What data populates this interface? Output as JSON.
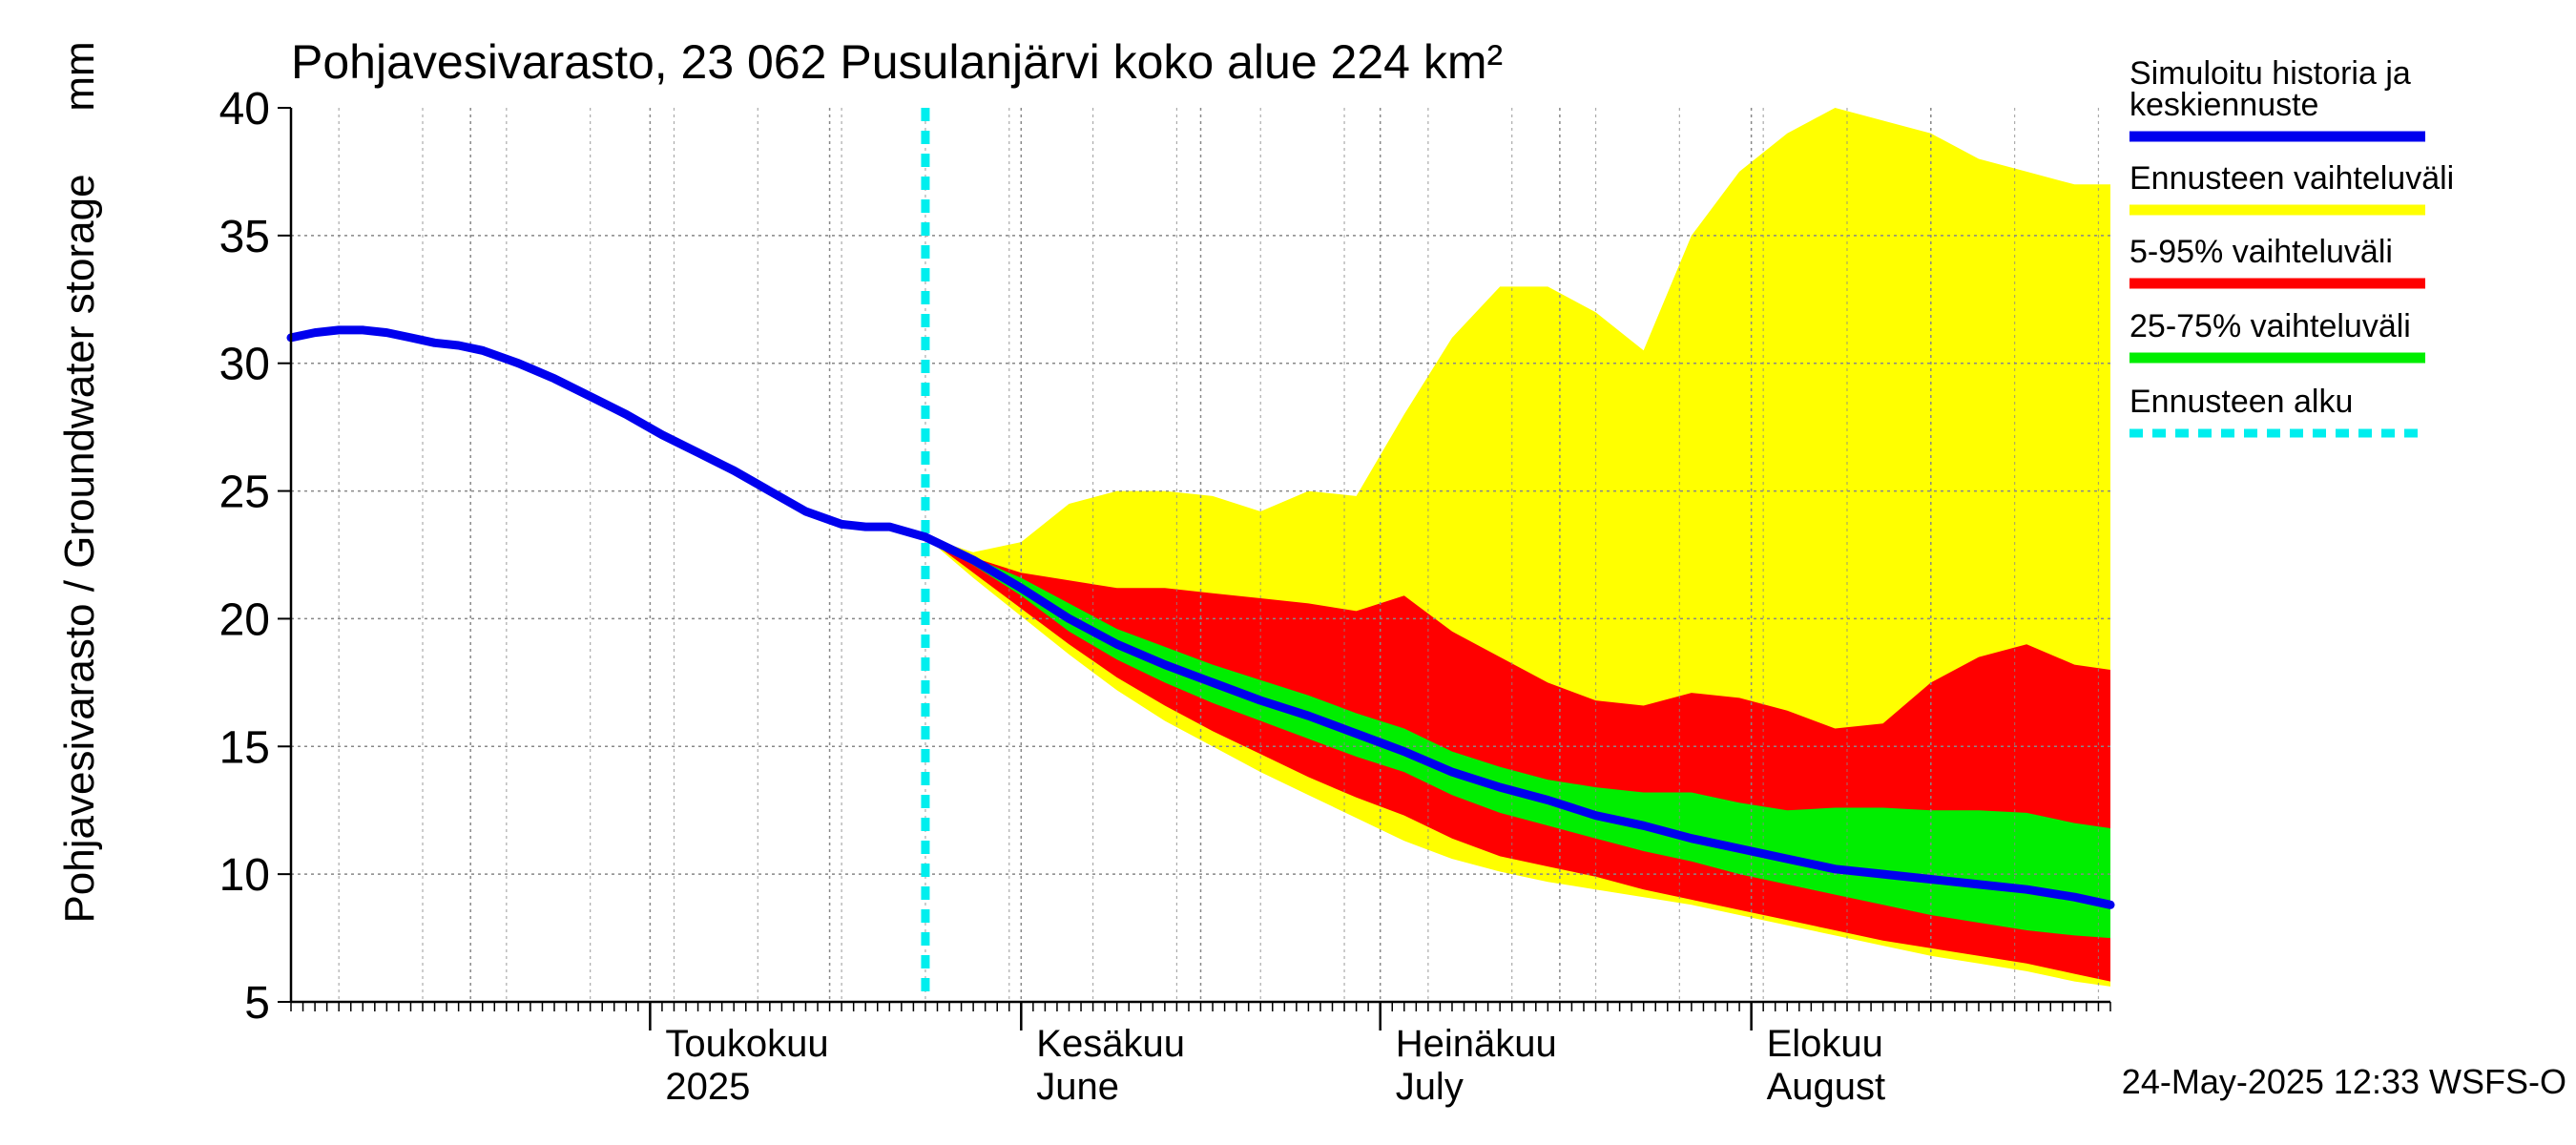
{
  "chart_data": {
    "type": "area",
    "title": "Pohjavesivarasto, 23 062 Pusulanjärvi koko alue 224 km²",
    "ylabel": "Pohjavesivarasto / Groundwater storage",
    "yunit": "mm",
    "ylim": [
      5,
      40
    ],
    "yticks": [
      5,
      10,
      15,
      20,
      25,
      30,
      35,
      40
    ],
    "xlim": [
      "2025-04-01",
      "2025-08-31"
    ],
    "month_labels": [
      {
        "date": "2025-05-01",
        "line1": "Toukokuu",
        "line2": "2025"
      },
      {
        "date": "2025-06-01",
        "line1": "Kesäkuu",
        "line2": "June"
      },
      {
        "date": "2025-07-01",
        "line1": "Heinäkuu",
        "line2": "July"
      },
      {
        "date": "2025-08-01",
        "line1": "Elokuu",
        "line2": "August"
      }
    ],
    "forecast_start": "2025-05-24",
    "timestamp": "24-May-2025 12:33 WSFS-O",
    "colors": {
      "history": "#0000ee",
      "full_range": "#ffff00",
      "p5_95": "#ff0000",
      "p25_75": "#00ee00",
      "forecast_start": "#00eeee",
      "grid": "#888888"
    },
    "legend": [
      {
        "label": "Simuloitu historia ja",
        "label2": "keskiennuste",
        "key": "history"
      },
      {
        "label": "Ennusteen vaihteluväli",
        "key": "full_range"
      },
      {
        "label": "5-95% vaihteluväli",
        "key": "p5_95"
      },
      {
        "label": "25-75% vaihteluväli",
        "key": "p25_75"
      },
      {
        "label": "Ennusteen alku",
        "key": "forecast_start"
      }
    ],
    "history": {
      "x": [
        "2025-04-01",
        "2025-04-03",
        "2025-04-05",
        "2025-04-07",
        "2025-04-09",
        "2025-04-11",
        "2025-04-13",
        "2025-04-15",
        "2025-04-17",
        "2025-04-20",
        "2025-04-23",
        "2025-04-26",
        "2025-04-29",
        "2025-05-02",
        "2025-05-05",
        "2025-05-08",
        "2025-05-11",
        "2025-05-14",
        "2025-05-17",
        "2025-05-19",
        "2025-05-21",
        "2025-05-24"
      ],
      "y": [
        31.0,
        31.2,
        31.3,
        31.3,
        31.2,
        31.0,
        30.8,
        30.7,
        30.5,
        30.0,
        29.4,
        28.7,
        28.0,
        27.2,
        26.5,
        25.8,
        25.0,
        24.2,
        23.7,
        23.6,
        23.6,
        23.2
      ]
    },
    "forecast": {
      "x": [
        "2025-05-24",
        "2025-05-28",
        "2025-06-01",
        "2025-06-05",
        "2025-06-09",
        "2025-06-13",
        "2025-06-17",
        "2025-06-21",
        "2025-06-25",
        "2025-06-29",
        "2025-07-03",
        "2025-07-07",
        "2025-07-11",
        "2025-07-15",
        "2025-07-19",
        "2025-07-23",
        "2025-07-27",
        "2025-07-31",
        "2025-08-04",
        "2025-08-08",
        "2025-08-12",
        "2025-08-16",
        "2025-08-20",
        "2025-08-24",
        "2025-08-28",
        "2025-08-31"
      ],
      "median": [
        23.2,
        22.3,
        21.2,
        20.0,
        19.0,
        18.2,
        17.5,
        16.8,
        16.2,
        15.5,
        14.8,
        14.0,
        13.4,
        12.9,
        12.3,
        11.9,
        11.4,
        11.0,
        10.6,
        10.2,
        10.0,
        9.8,
        9.6,
        9.4,
        9.1,
        8.8
      ],
      "max": [
        23.2,
        22.6,
        23.0,
        24.5,
        25.0,
        25.0,
        24.8,
        24.2,
        25.0,
        24.8,
        28.0,
        31.0,
        33.0,
        33.0,
        32.0,
        30.5,
        35.0,
        37.5,
        39.0,
        40.0,
        39.5,
        39.0,
        38.0,
        37.5,
        37.0,
        37.0
      ],
      "p95": [
        23.2,
        22.4,
        21.8,
        21.5,
        21.2,
        21.2,
        21.0,
        20.8,
        20.6,
        20.3,
        20.9,
        19.5,
        18.5,
        17.5,
        16.8,
        16.6,
        17.1,
        16.9,
        16.4,
        15.7,
        15.9,
        17.5,
        18.5,
        19.0,
        18.2,
        18.0
      ],
      "p75": [
        23.2,
        22.4,
        21.6,
        20.6,
        19.6,
        18.9,
        18.2,
        17.6,
        17.0,
        16.3,
        15.7,
        14.8,
        14.2,
        13.7,
        13.4,
        13.2,
        13.2,
        12.8,
        12.5,
        12.6,
        12.6,
        12.5,
        12.5,
        12.4,
        12.0,
        11.8
      ],
      "p25": [
        23.2,
        22.1,
        20.9,
        19.5,
        18.4,
        17.5,
        16.7,
        16.0,
        15.3,
        14.6,
        14.0,
        13.1,
        12.4,
        11.9,
        11.4,
        10.9,
        10.5,
        10.0,
        9.6,
        9.2,
        8.8,
        8.4,
        8.1,
        7.8,
        7.6,
        7.5
      ],
      "p5": [
        23.2,
        21.8,
        20.4,
        19.0,
        17.7,
        16.6,
        15.6,
        14.7,
        13.8,
        13.0,
        12.3,
        11.4,
        10.7,
        10.3,
        9.9,
        9.4,
        9.0,
        8.6,
        8.2,
        7.8,
        7.4,
        7.1,
        6.8,
        6.5,
        6.1,
        5.8
      ],
      "min": [
        23.2,
        21.6,
        20.1,
        18.6,
        17.2,
        16.0,
        15.0,
        14.0,
        13.1,
        12.2,
        11.3,
        10.6,
        10.1,
        9.7,
        9.4,
        9.1,
        8.8,
        8.4,
        8.0,
        7.6,
        7.2,
        6.8,
        6.5,
        6.2,
        5.8,
        5.6
      ]
    }
  }
}
